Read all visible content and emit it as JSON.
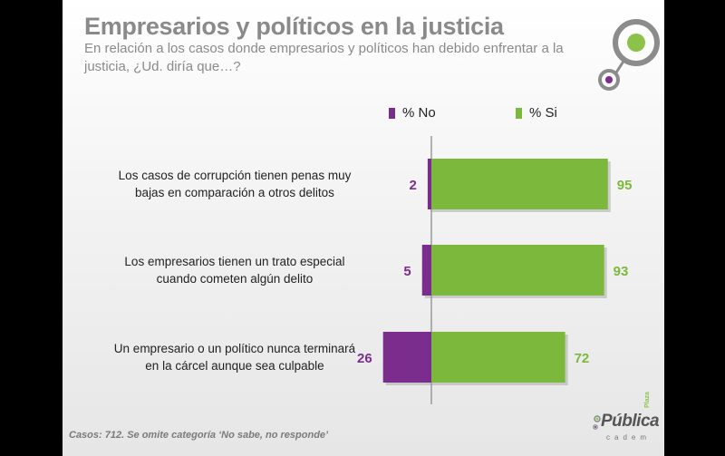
{
  "title": "Empresarios y políticos en la justicia",
  "subtitle": "En relación a los casos donde empresarios y políticos han debido enfrentar a la justicia, ¿Ud. diría que…?",
  "legend": {
    "no_label": "% No",
    "si_label": "% Si"
  },
  "colors": {
    "no": "#7b2d8e",
    "si": "#7cb83b",
    "title": "#8a8a8a"
  },
  "footnote": "Casos: 712. Se omite categoría ‘No sabe, no responde’",
  "brand": {
    "name": "Pública",
    "prefix": "Plaza",
    "sub": "cadem"
  },
  "chart_data": {
    "type": "bar",
    "orientation": "horizontal-diverging",
    "categories": [
      "Los casos de corrupción tienen penas muy bajas en comparación a otros delitos",
      "Los empresarios tienen un trato especial cuando cometen algún delito",
      "Un empresario o un político nunca terminará en la cárcel aunque sea culpable"
    ],
    "category_lines": [
      [
        "Los casos de corrupción tienen penas muy",
        "bajas en comparación a otros delitos"
      ],
      [
        "Los empresarios tienen un trato especial",
        "cuando cometen algún delito"
      ],
      [
        "Un empresario o un político nunca terminará",
        "en la cárcel aunque sea culpable"
      ]
    ],
    "series": [
      {
        "name": "% No",
        "values": [
          2,
          5,
          26
        ],
        "color": "#7b2d8e"
      },
      {
        "name": "% Si",
        "values": [
          95,
          93,
          72
        ],
        "color": "#7cb83b"
      }
    ],
    "legend_position": "top"
  }
}
